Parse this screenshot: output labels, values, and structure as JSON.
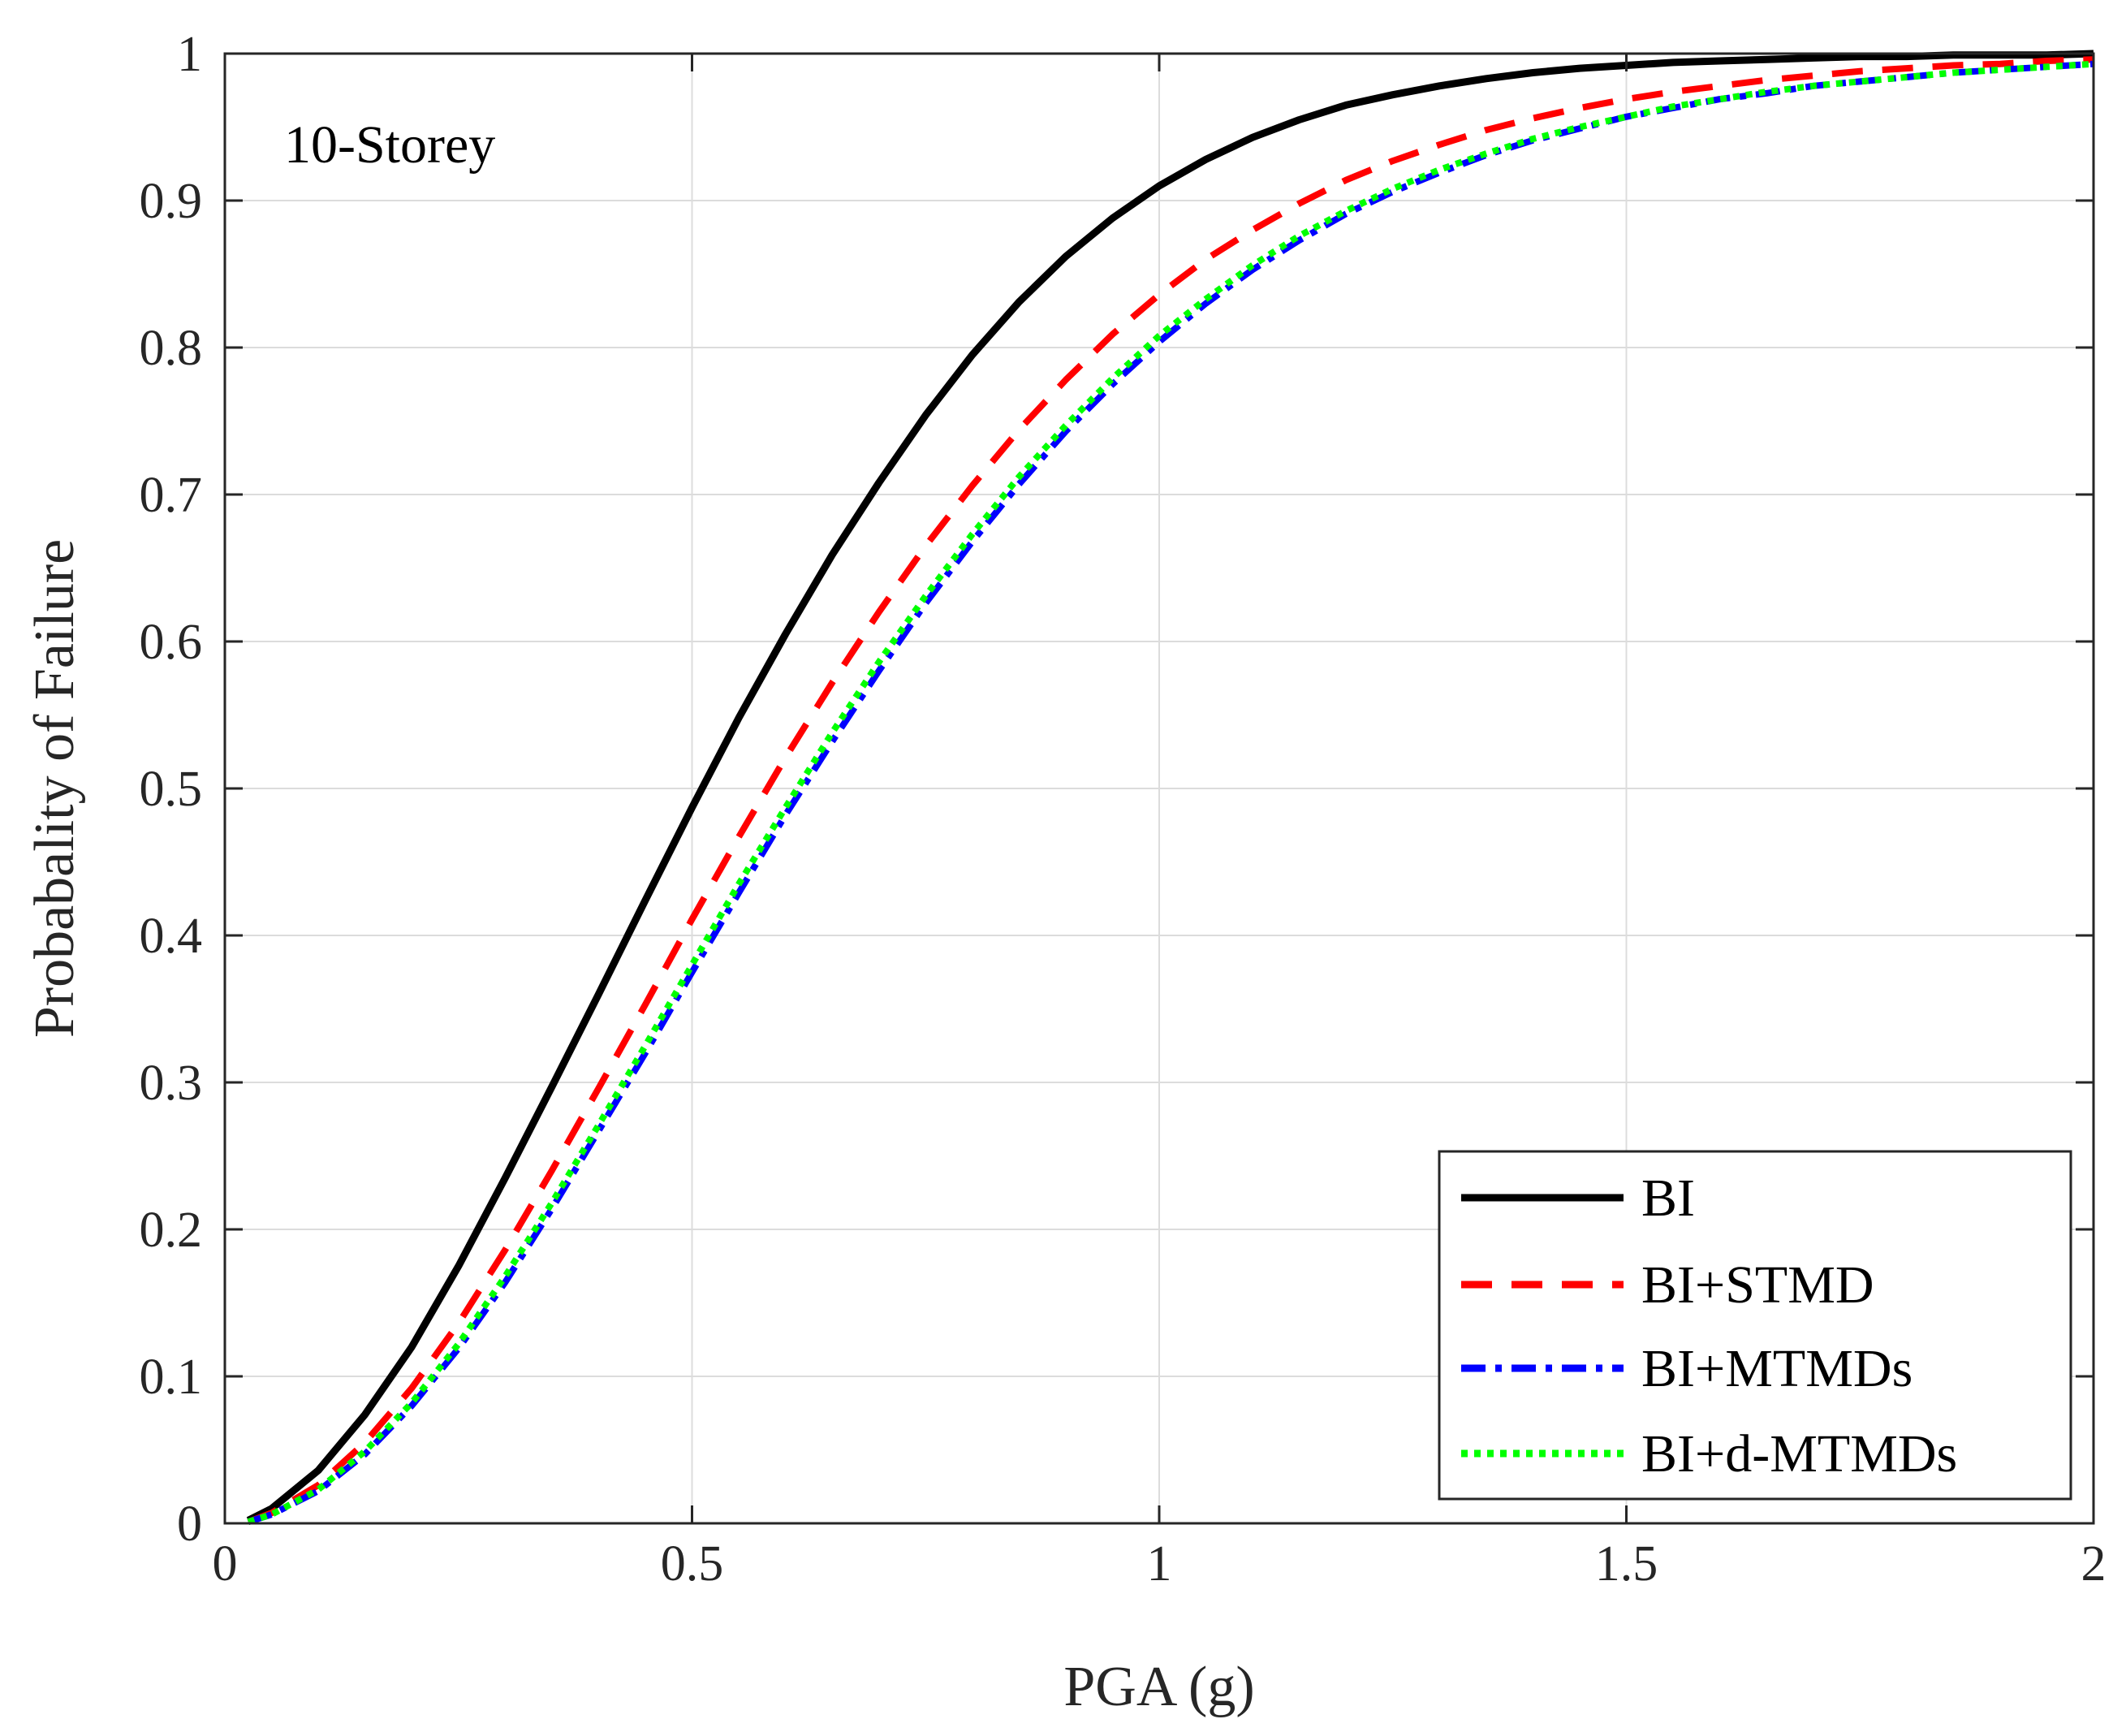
{
  "chart_data": {
    "type": "line",
    "title": "",
    "annotation": "10-Storey",
    "xlabel": "PGA (g)",
    "ylabel": "Probabality of Failure",
    "xlim": [
      0,
      2
    ],
    "ylim": [
      0,
      1
    ],
    "xticks": [
      0,
      0.5,
      1,
      1.5,
      2
    ],
    "xtick_labels": [
      "0",
      "0.5",
      "1",
      "1.5",
      "2"
    ],
    "yticks": [
      0,
      0.1,
      0.2,
      0.3,
      0.4,
      0.5,
      0.6,
      0.7,
      0.8,
      0.9,
      1
    ],
    "ytick_labels": [
      "0",
      "0.1",
      "0.2",
      "0.3",
      "0.4",
      "0.5",
      "0.6",
      "0.7",
      "0.8",
      "0.9",
      "1"
    ],
    "grid": true,
    "legend_position": "bottom-right",
    "x": [
      0.025,
      0.05,
      0.1,
      0.15,
      0.2,
      0.25,
      0.3,
      0.35,
      0.4,
      0.45,
      0.5,
      0.55,
      0.6,
      0.65,
      0.7,
      0.75,
      0.8,
      0.85,
      0.9,
      0.95,
      1.0,
      1.05,
      1.1,
      1.15,
      1.2,
      1.25,
      1.3,
      1.35,
      1.4,
      1.45,
      1.5,
      1.55,
      1.6,
      1.65,
      1.7,
      1.75,
      1.8,
      1.85,
      1.9,
      1.95,
      2.0
    ],
    "series": [
      {
        "name": "BI",
        "color": "#000000",
        "style": "solid",
        "values": [
          0.002,
          0.01,
          0.036,
          0.074,
          0.12,
          0.175,
          0.235,
          0.297,
          0.36,
          0.424,
          0.487,
          0.548,
          0.605,
          0.659,
          0.708,
          0.754,
          0.795,
          0.831,
          0.862,
          0.888,
          0.91,
          0.928,
          0.943,
          0.955,
          0.965,
          0.972,
          0.978,
          0.983,
          0.987,
          0.99,
          0.992,
          0.994,
          0.995,
          0.996,
          0.997,
          0.998,
          0.998,
          0.999,
          0.999,
          0.999,
          1.0
        ]
      },
      {
        "name": "BI+STMD",
        "color": "#ff0000",
        "style": "dashed",
        "values": [
          0.001,
          0.007,
          0.026,
          0.055,
          0.092,
          0.136,
          0.186,
          0.24,
          0.296,
          0.353,
          0.411,
          0.467,
          0.521,
          0.572,
          0.62,
          0.665,
          0.706,
          0.744,
          0.778,
          0.809,
          0.836,
          0.86,
          0.88,
          0.898,
          0.914,
          0.927,
          0.938,
          0.948,
          0.956,
          0.963,
          0.969,
          0.974,
          0.978,
          0.982,
          0.985,
          0.988,
          0.99,
          0.992,
          0.993,
          0.995,
          0.996
        ]
      },
      {
        "name": "BI+MTMDs",
        "color": "#0000ff",
        "style": "dashdot",
        "values": [
          0.001,
          0.006,
          0.022,
          0.047,
          0.08,
          0.119,
          0.164,
          0.214,
          0.267,
          0.32,
          0.375,
          0.429,
          0.482,
          0.532,
          0.58,
          0.626,
          0.668,
          0.707,
          0.743,
          0.775,
          0.804,
          0.83,
          0.853,
          0.873,
          0.891,
          0.906,
          0.919,
          0.931,
          0.941,
          0.949,
          0.957,
          0.963,
          0.969,
          0.973,
          0.978,
          0.981,
          0.984,
          0.987,
          0.989,
          0.991,
          0.993
        ]
      },
      {
        "name": "BI+d-MTMDs",
        "color": "#00ff00",
        "style": "dotted",
        "values": [
          0.001,
          0.006,
          0.023,
          0.049,
          0.082,
          0.122,
          0.168,
          0.218,
          0.271,
          0.325,
          0.38,
          0.435,
          0.487,
          0.538,
          0.586,
          0.631,
          0.673,
          0.712,
          0.747,
          0.779,
          0.808,
          0.833,
          0.856,
          0.876,
          0.893,
          0.908,
          0.921,
          0.932,
          0.942,
          0.95,
          0.957,
          0.964,
          0.969,
          0.974,
          0.978,
          0.981,
          0.984,
          0.987,
          0.989,
          0.991,
          0.993
        ]
      }
    ]
  }
}
